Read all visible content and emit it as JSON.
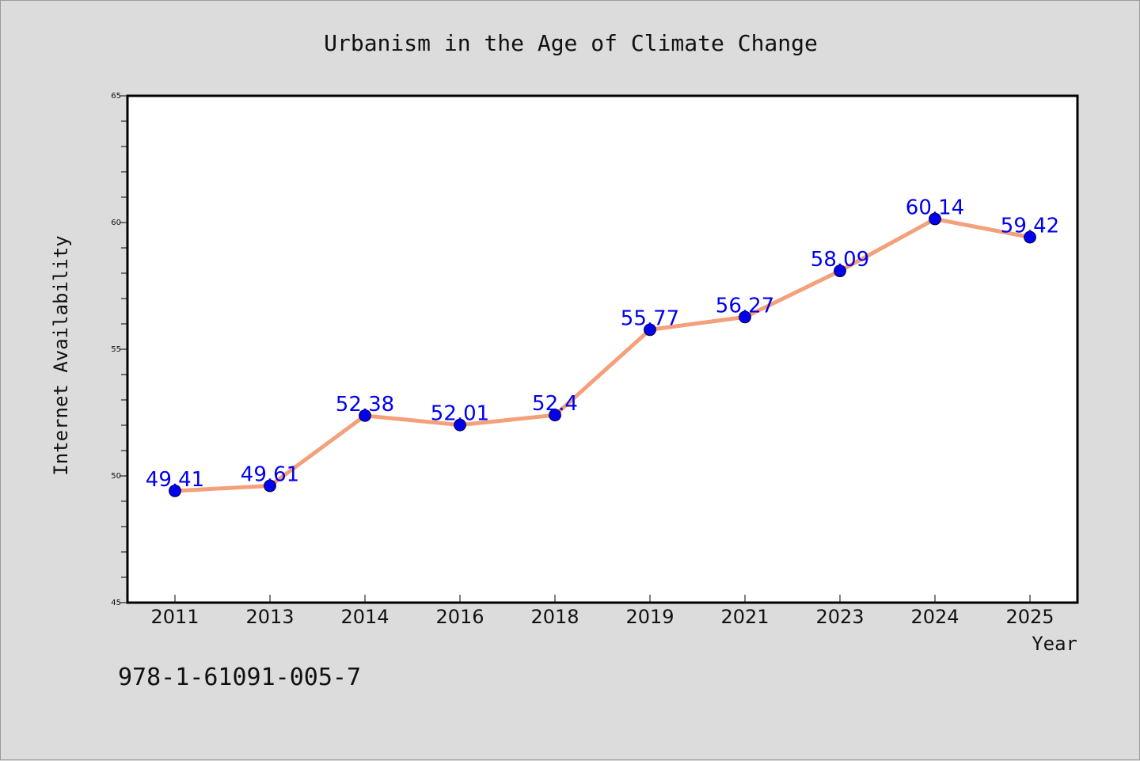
{
  "isbn": "978-1-61091-005-7",
  "colors": {
    "background": "#dcdcdc",
    "plot_background": "#ffffff",
    "line": "#f4a07a",
    "marker": "#0000ee",
    "data_label": "#0000ee"
  },
  "chart_data": {
    "type": "line",
    "title": "Urbanism in the Age of Climate Change",
    "xlabel": "Year",
    "ylabel": "Internet Availability",
    "categories": [
      "2011",
      "2013",
      "2014",
      "2016",
      "2018",
      "2019",
      "2021",
      "2023",
      "2024",
      "2025"
    ],
    "series": [
      {
        "values": [
          49.41,
          49.61,
          52.38,
          52.01,
          52.4,
          55.77,
          56.27,
          58.09,
          60.14,
          59.42
        ],
        "data_labels": [
          "49.41",
          "49.61",
          "52.38",
          "52.01",
          "52.4",
          "55.77",
          "56.27",
          "58.09",
          "60.14",
          "59.42"
        ]
      }
    ],
    "ylim": [
      45,
      65
    ],
    "yticks": [
      "45",
      "50",
      "55",
      "60",
      "65"
    ],
    "y_minor_step": 1,
    "grid": false,
    "legend": "none",
    "markers": "filled-circle"
  }
}
